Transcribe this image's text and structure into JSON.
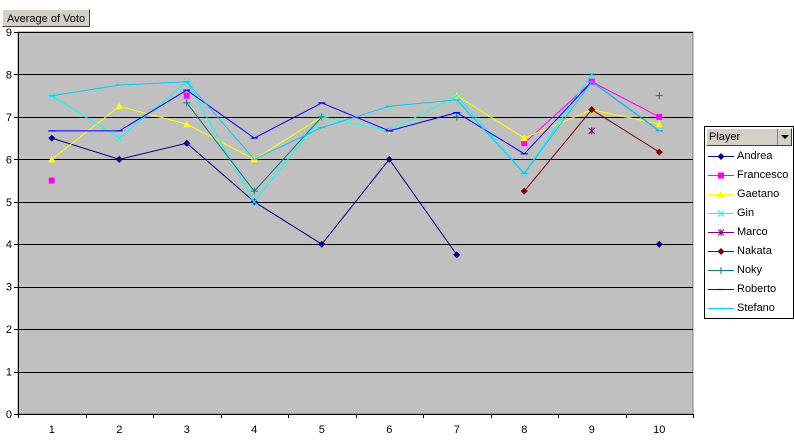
{
  "chart_data": {
    "type": "line",
    "title": "",
    "field_button": "Average of Voto",
    "xlabel": "",
    "ylabel": "",
    "categories": [
      "1",
      "2",
      "3",
      "4",
      "5",
      "6",
      "7",
      "8",
      "9",
      "10"
    ],
    "ylim": [
      0,
      9
    ],
    "yticks": [
      0,
      1,
      2,
      3,
      4,
      5,
      6,
      7,
      8,
      9
    ],
    "grid": true,
    "legend_title": "Player",
    "legend_position": "right",
    "series": [
      {
        "name": "Andrea",
        "color": "#000080",
        "marker": "diamond",
        "values": [
          6.5,
          6.0,
          6.38,
          5.0,
          4.0,
          6.0,
          3.75,
          null,
          null,
          4.0
        ]
      },
      {
        "name": "Francesco",
        "color": "#ff00ff",
        "marker": "square",
        "values": [
          5.5,
          null,
          7.5,
          null,
          null,
          6.67,
          null,
          6.38,
          7.83,
          7.0
        ]
      },
      {
        "name": "Gaetano",
        "color": "#ffff00",
        "marker": "triangle",
        "values": [
          6.0,
          7.25,
          6.83,
          6.0,
          7.0,
          6.67,
          7.5,
          6.5,
          7.17,
          6.83
        ]
      },
      {
        "name": "Gin",
        "color": "#00ffff",
        "marker": "x",
        "values": [
          7.5,
          6.5,
          7.83,
          5.0,
          7.0,
          6.67,
          7.5,
          5.67,
          8.0,
          null
        ]
      },
      {
        "name": "Marco",
        "color": "#800080",
        "marker": "star",
        "values": [
          null,
          null,
          null,
          null,
          null,
          null,
          null,
          null,
          6.67,
          null
        ]
      },
      {
        "name": "Nakata",
        "color": "#800000",
        "marker": "diamond",
        "values": [
          null,
          null,
          null,
          null,
          null,
          null,
          null,
          5.25,
          7.17,
          6.17
        ]
      },
      {
        "name": "Noky",
        "color": "#008080",
        "marker": "plus",
        "values": [
          null,
          null,
          7.33,
          5.25,
          7.0,
          null,
          7.0,
          null,
          null,
          7.5
        ]
      },
      {
        "name": "Roberto",
        "color": "#0000ff",
        "marker": "dash",
        "values": [
          6.67,
          6.67,
          7.63,
          6.5,
          7.33,
          6.67,
          7.1,
          6.13,
          7.83,
          6.67
        ]
      },
      {
        "name": "Stefano",
        "color": "#00ccff",
        "marker": "dash",
        "values": [
          7.5,
          7.75,
          7.83,
          6.0,
          6.75,
          7.25,
          7.4,
          5.67,
          7.83,
          6.67
        ]
      }
    ]
  }
}
